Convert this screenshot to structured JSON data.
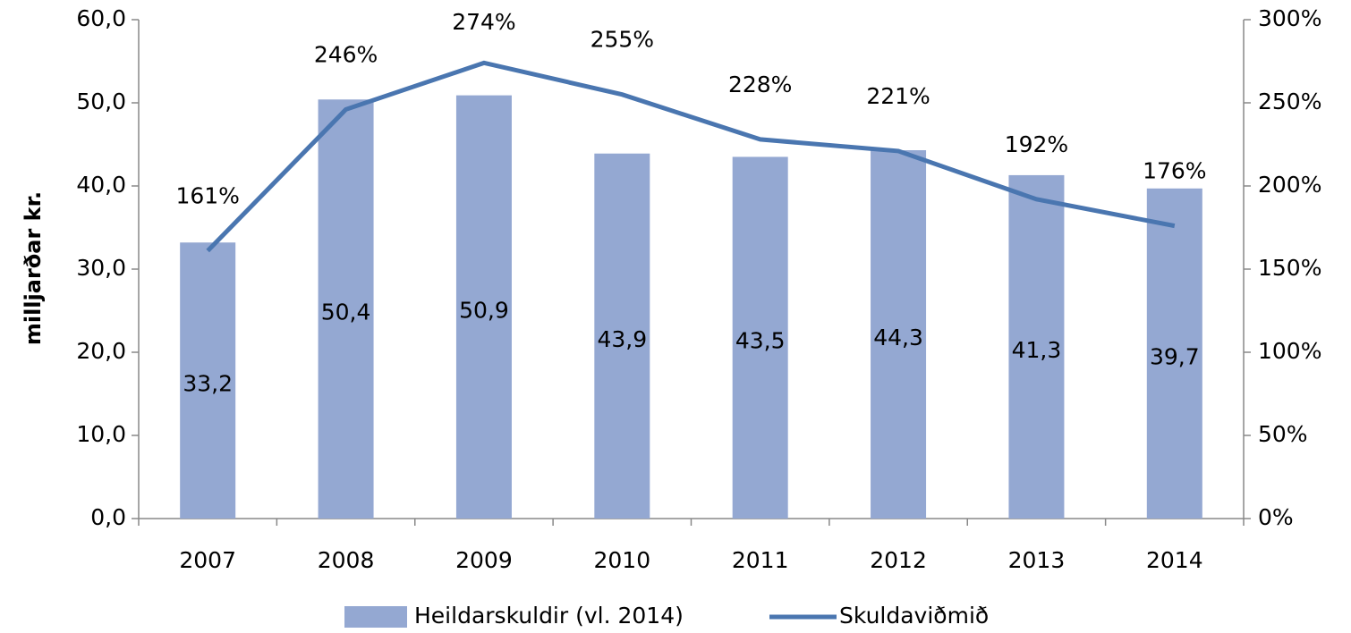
{
  "chart_data": {
    "type": "bar",
    "y_label": "milljarðar kr.",
    "categories": [
      "2007",
      "2008",
      "2009",
      "2010",
      "2011",
      "2012",
      "2013",
      "2014"
    ],
    "series": [
      {
        "name": "Heildarskuldir (vl. 2014)",
        "color": "#94a8d2",
        "type": "bar",
        "values": [
          33.2,
          50.4,
          50.9,
          43.9,
          43.5,
          44.3,
          41.3,
          39.7
        ],
        "value_labels": [
          "33,2",
          "50,4",
          "50,9",
          "43,9",
          "43,5",
          "44,3",
          "41,3",
          "39,7"
        ]
      },
      {
        "name": "Skuldaviðmið",
        "color": "#4a76b0",
        "type": "line",
        "axis": "y2",
        "values": [
          161,
          246,
          274,
          255,
          228,
          221,
          192,
          176
        ],
        "value_labels": [
          "161%",
          "246%",
          "274%",
          "255%",
          "228%",
          "221%",
          "192%",
          "176%"
        ]
      }
    ],
    "ylim": [
      0,
      60
    ],
    "yticks": [
      {
        "value": 0,
        "label": "0,0"
      },
      {
        "value": 10,
        "label": "10,0"
      },
      {
        "value": 20,
        "label": "20,0"
      },
      {
        "value": 30,
        "label": "30,0"
      },
      {
        "value": 40,
        "label": "40,0"
      },
      {
        "value": 50,
        "label": "50,0"
      },
      {
        "value": 60,
        "label": "60,0"
      }
    ],
    "y2lim": [
      0,
      300
    ],
    "y2ticks": [
      {
        "value": 0,
        "label": "0%"
      },
      {
        "value": 50,
        "label": "50%"
      },
      {
        "value": 100,
        "label": "100%"
      },
      {
        "value": 150,
        "label": "150%"
      },
      {
        "value": 200,
        "label": "200%"
      },
      {
        "value": 250,
        "label": "250%"
      },
      {
        "value": 300,
        "label": "300%"
      }
    ],
    "legend": "bottom"
  }
}
